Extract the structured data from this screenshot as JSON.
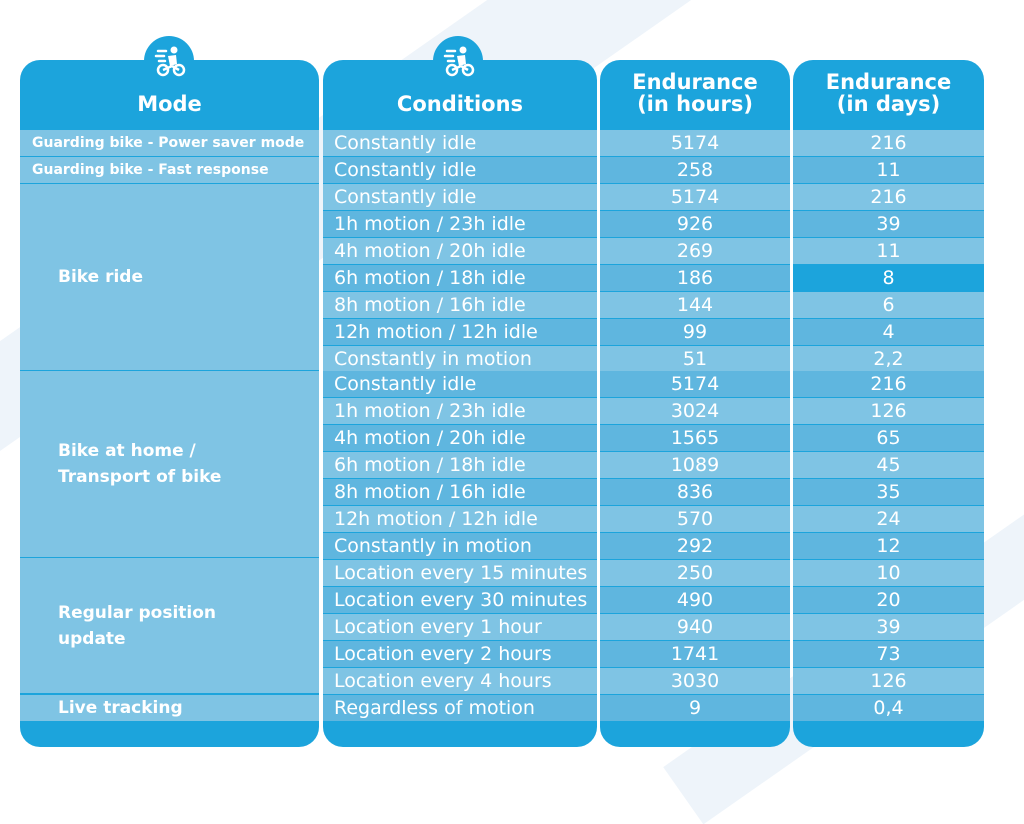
{
  "headers": {
    "mode": "Mode",
    "conditions": "Conditions",
    "endurance_hours_l1": "Endurance",
    "endurance_hours_l2": "(in hours)",
    "endurance_days_l1": "Endurance",
    "endurance_days_l2": "(in days)"
  },
  "icons": {
    "header_icon": "bike-rider-icon"
  },
  "colors": {
    "primary": "#1ca4dc",
    "row_light": "#7fc4e4",
    "row_dark": "#5fb6df",
    "text": "#ffffff"
  },
  "modes": {
    "m0": "Guarding bike - Power saver mode",
    "m1": "Guarding bike - Fast response",
    "m2": "Bike ride",
    "m3_l1": "Bike at home /",
    "m3_l2": "Transport of bike",
    "m4_l1": "Regular position",
    "m4_l2": "update",
    "m5": "Live tracking"
  },
  "rows": [
    {
      "cond": "Constantly idle",
      "hours": "5174",
      "days": "216"
    },
    {
      "cond": "Constantly idle",
      "hours": "258",
      "days": "11"
    },
    {
      "cond": "Constantly idle",
      "hours": "5174",
      "days": "216"
    },
    {
      "cond": "1h motion / 23h idle",
      "hours": "926",
      "days": "39"
    },
    {
      "cond": "4h motion / 20h idle",
      "hours": "269",
      "days": "11"
    },
    {
      "cond": "6h motion / 18h idle",
      "hours": "186",
      "days": "8"
    },
    {
      "cond": "8h motion / 16h idle",
      "hours": "144",
      "days": "6"
    },
    {
      "cond": "12h motion / 12h idle",
      "hours": "99",
      "days": "4"
    },
    {
      "cond": "Constantly in motion",
      "hours": "51",
      "days": "2,2"
    },
    {
      "cond": "Constantly idle",
      "hours": "5174",
      "days": "216"
    },
    {
      "cond": "1h motion / 23h idle",
      "hours": "3024",
      "days": "126"
    },
    {
      "cond": "4h motion / 20h idle",
      "hours": "1565",
      "days": "65"
    },
    {
      "cond": "6h motion / 18h idle",
      "hours": "1089",
      "days": "45"
    },
    {
      "cond": "8h motion / 16h idle",
      "hours": "836",
      "days": "35"
    },
    {
      "cond": "12h motion / 12h idle",
      "hours": "570",
      "days": "24"
    },
    {
      "cond": "Constantly in motion",
      "hours": "292",
      "days": "12"
    },
    {
      "cond": "Location every 15 minutes",
      "hours": "250",
      "days": "10"
    },
    {
      "cond": "Location every 30 minutes",
      "hours": "490",
      "days": "20"
    },
    {
      "cond": "Location every 1 hour",
      "hours": "940",
      "days": "39"
    },
    {
      "cond": "Location every 2 hours",
      "hours": "1741",
      "days": "73"
    },
    {
      "cond": "Location every 4 hours",
      "hours": "3030",
      "days": "126"
    },
    {
      "cond": "Regardless of motion",
      "hours": "9",
      "days": "0,4"
    }
  ]
}
